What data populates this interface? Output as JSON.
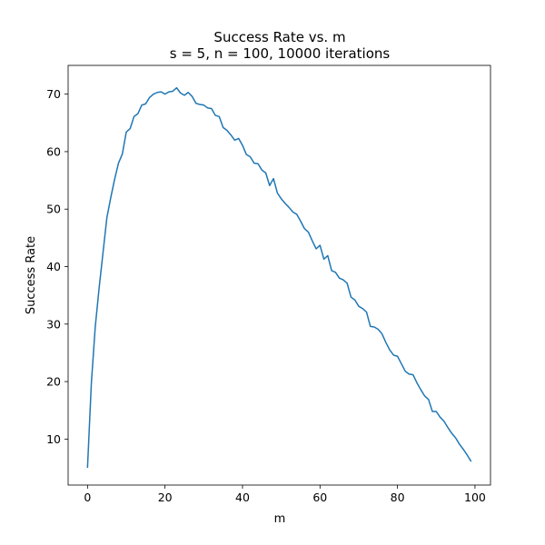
{
  "chart_data": {
    "type": "line",
    "title": "Success Rate vs. m",
    "subtitle": "s = 5, n = 100, 10000 iterations",
    "xlabel": "m",
    "ylabel": "Success Rate",
    "xlim": [
      -5,
      104
    ],
    "ylim": [
      2,
      75
    ],
    "xticks": [
      0,
      20,
      40,
      60,
      80,
      100
    ],
    "yticks": [
      10,
      20,
      30,
      40,
      50,
      60,
      70
    ],
    "grid": false,
    "series": [
      {
        "color": "#1f77b4",
        "x": [
          0,
          1,
          2,
          3,
          4,
          5,
          6,
          7,
          8,
          9,
          10,
          11,
          12,
          13,
          14,
          15,
          16,
          17,
          18,
          19,
          20,
          21,
          22,
          23,
          24,
          25,
          26,
          27,
          28,
          29,
          30,
          31,
          32,
          33,
          34,
          35,
          36,
          37,
          38,
          39,
          40,
          41,
          42,
          43,
          44,
          45,
          46,
          47,
          48,
          49,
          50,
          51,
          52,
          53,
          54,
          55,
          56,
          57,
          58,
          59,
          60,
          61,
          62,
          63,
          64,
          65,
          66,
          67,
          68,
          69,
          70,
          71,
          72,
          73,
          74,
          75,
          76,
          77,
          78,
          79,
          80,
          81,
          82,
          83,
          84,
          85,
          86,
          87,
          88,
          89,
          90,
          91,
          92,
          93,
          94,
          95,
          96,
          97,
          98,
          99
        ],
        "y": [
          5.0,
          19.8,
          29.5,
          36.3,
          42.4,
          48.5,
          52.0,
          55.2,
          58.0,
          59.6,
          63.4,
          64.0,
          66.1,
          66.6,
          68.1,
          68.3,
          69.4,
          70.0,
          70.3,
          70.4,
          70.0,
          70.4,
          70.5,
          71.1,
          70.2,
          69.8,
          70.3,
          69.6,
          68.4,
          68.2,
          68.1,
          67.6,
          67.5,
          66.3,
          66.1,
          64.2,
          63.7,
          62.9,
          62.0,
          62.3,
          61.1,
          59.5,
          59.1,
          58.0,
          57.9,
          56.8,
          56.3,
          54.1,
          55.3,
          52.8,
          51.8,
          51.0,
          50.3,
          49.5,
          49.1,
          47.9,
          46.6,
          46.0,
          44.5,
          43.1,
          43.7,
          41.3,
          41.9,
          39.3,
          39.0,
          38.0,
          37.7,
          37.1,
          34.7,
          34.2,
          33.1,
          32.7,
          32.1,
          29.6,
          29.5,
          29.1,
          28.3,
          26.8,
          25.5,
          24.6,
          24.4,
          23.1,
          21.8,
          21.3,
          21.2,
          19.8,
          18.6,
          17.5,
          16.9,
          14.8,
          14.8,
          13.8,
          13.1,
          12.0,
          11.0,
          10.2,
          9.1,
          8.2,
          7.2,
          6.1
        ]
      }
    ]
  }
}
